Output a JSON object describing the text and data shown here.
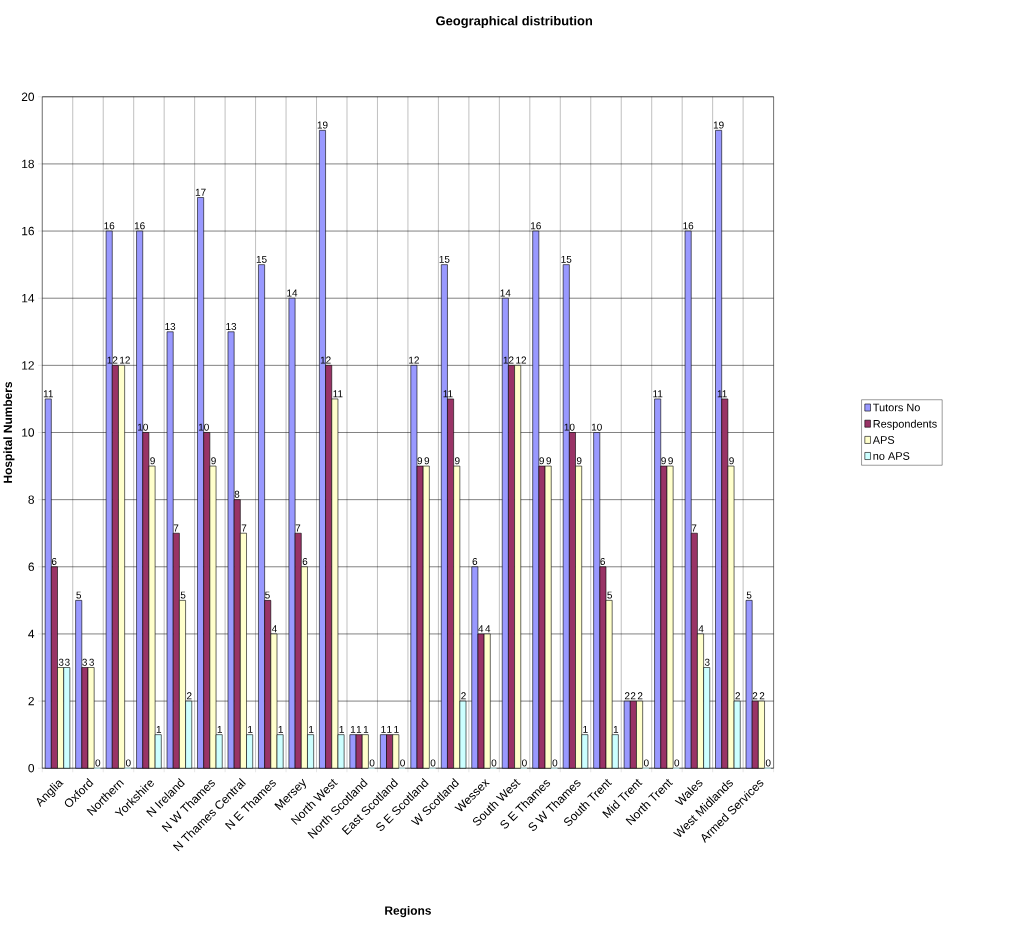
{
  "chart_data": {
    "type": "bar",
    "title": "Geographical distribution",
    "xlabel": "Regions",
    "ylabel": "Hospital Numbers",
    "categories": [
      "Anglia",
      "Oxford",
      "Northern",
      "Yorkshire",
      "N Ireland",
      "N W Thames",
      "N Thames Central",
      "N E Thames",
      "Mersey",
      "North West",
      "North Scotland",
      "East Scotland",
      "S E Scotland",
      "W Scotland",
      "Wessex",
      "South West",
      "S E Thames",
      "S W Thames",
      "South Trent",
      "Mid Trent",
      "North Trent",
      "Wales",
      "West Midlands",
      "Armed Services"
    ],
    "series": [
      {
        "name": "Tutors No",
        "color": "#9999ff",
        "values": [
          11,
          5,
          16,
          16,
          13,
          17,
          13,
          15,
          14,
          19,
          1,
          1,
          12,
          15,
          6,
          14,
          16,
          15,
          10,
          2,
          11,
          16,
          19,
          5
        ]
      },
      {
        "name": "Respondents",
        "color": "#993366",
        "values": [
          6,
          3,
          12,
          10,
          7,
          10,
          8,
          5,
          7,
          12,
          1,
          1,
          9,
          11,
          4,
          12,
          9,
          10,
          6,
          2,
          9,
          7,
          11,
          2
        ]
      },
      {
        "name": "APS",
        "color": "#ffffcc",
        "values": [
          3,
          3,
          12,
          9,
          5,
          9,
          7,
          4,
          6,
          11,
          1,
          1,
          9,
          9,
          4,
          12,
          9,
          9,
          5,
          2,
          9,
          4,
          9,
          2
        ]
      },
      {
        "name": "no APS",
        "color": "#ccffff",
        "values": [
          3,
          0,
          0,
          1,
          2,
          1,
          1,
          1,
          1,
          1,
          0,
          0,
          0,
          2,
          0,
          0,
          0,
          1,
          1,
          0,
          0,
          3,
          2,
          0
        ]
      }
    ],
    "ylim": [
      0,
      20
    ],
    "yticks": [
      0,
      2,
      4,
      6,
      8,
      10,
      12,
      14,
      16,
      18,
      20
    ],
    "grid": true,
    "legend": "right",
    "data_labels": true
  }
}
